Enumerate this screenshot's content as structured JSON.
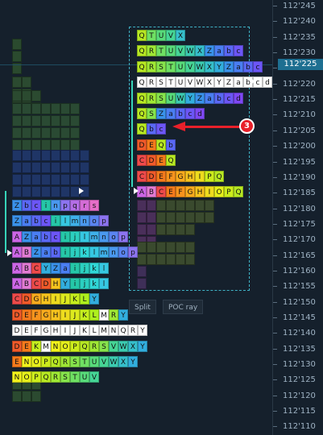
{
  "price_axis": {
    "ticks": [
      "112'245",
      "112'240",
      "112'235",
      "112'230",
      "112'225",
      "112'220",
      "112'215",
      "112'210",
      "112'205",
      "112'200",
      "112'195",
      "112'190",
      "112'185",
      "112'180",
      "112'175",
      "112'170",
      "112'165",
      "112'160",
      "112'155",
      "112'150",
      "112'145",
      "112'140",
      "112'135",
      "112'130",
      "112'125",
      "112'120",
      "112'115",
      "112'110"
    ],
    "current_price": "112'225",
    "current_price_color": "#1e6f91"
  },
  "buttons": {
    "split_label": "Split",
    "poc_ray_label": "POC ray"
  },
  "callout": {
    "number": "3",
    "color": "#e8202a"
  },
  "colors": {
    "value_area": "#36d3b8",
    "selection": "#3fb1c5",
    "background": "#15202c"
  },
  "right_profile": {
    "rows": [
      {
        "price": "112'235",
        "letters": "QTUVX"
      },
      {
        "price": "112'230",
        "letters": "QRTUVWXZabc"
      },
      {
        "price": "112'225",
        "letters": "QRSTUVWXYZabc"
      },
      {
        "price": "112'220",
        "letters": "QRSTUVWXYZabcd"
      },
      {
        "price": "112'215",
        "letters": "QRSUWYZabcd"
      },
      {
        "price": "112'210",
        "letters": "QSZabcd"
      },
      {
        "price": "112'205",
        "letters": "Qbc"
      },
      {
        "price": "112'200",
        "letters": "DEQb"
      },
      {
        "price": "112'195",
        "letters": "CDEQ"
      },
      {
        "price": "112'190",
        "letters": "CDEFGHIPQ"
      },
      {
        "price": "112'185",
        "letters": "ABCEFGHIOPQ"
      }
    ]
  },
  "left_profile": {
    "rows": [
      {
        "price": "112'180",
        "letters": "Zbcinpqrs"
      },
      {
        "price": "112'175",
        "letters": "Zabcilmnop"
      },
      {
        "price": "112'170",
        "letters": "AZabcijlmnop"
      },
      {
        "price": "112'165",
        "letters": "ABZabijklmnop"
      },
      {
        "price": "112'160",
        "letters": "ABCYZaijkl"
      },
      {
        "price": "112'155",
        "letters": "ABCDHYijkl"
      },
      {
        "price": "112'150",
        "letters": "CDGHIJKLY"
      },
      {
        "price": "112'145",
        "letters": "DEFGHIJKLMRY"
      },
      {
        "price": "112'140",
        "letters": "DEFGHIJKLMNQRY"
      },
      {
        "price": "112'135",
        "letters": "DEKMNOPQRSVWXY"
      },
      {
        "price": "112'130",
        "letters": "ENOPQRSTUVWXY"
      },
      {
        "price": "112'125",
        "letters": "NOPQRSTUV"
      }
    ]
  }
}
